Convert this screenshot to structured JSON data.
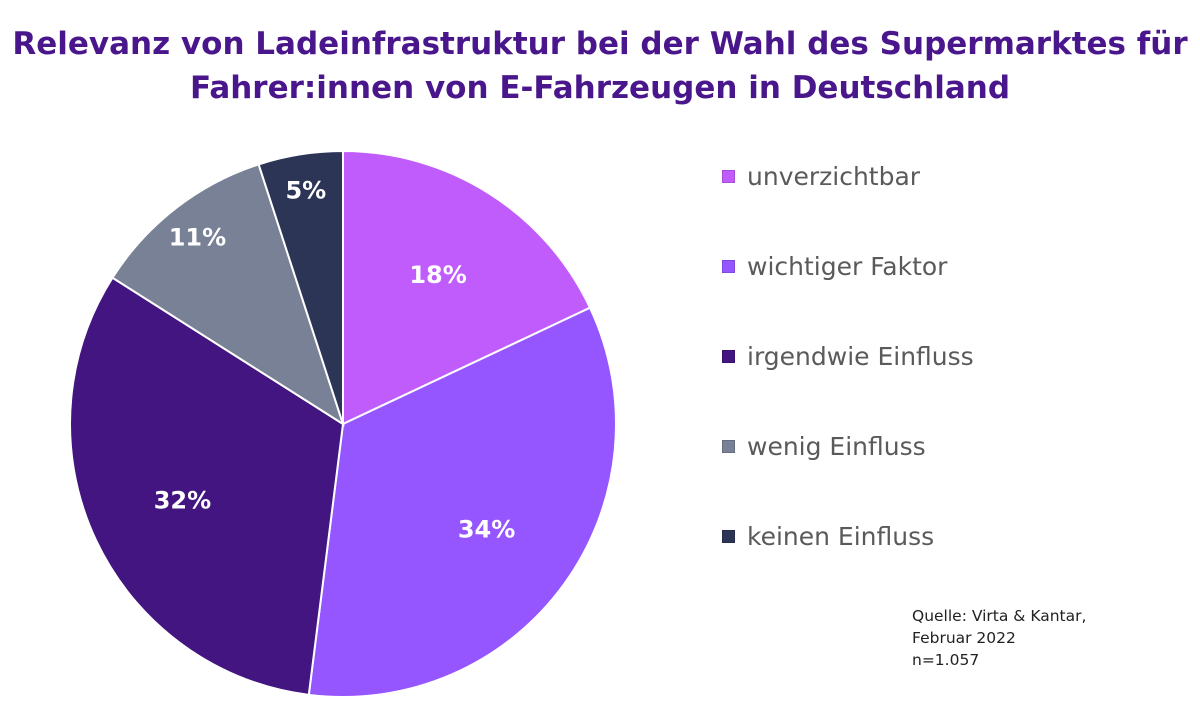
{
  "chart_data": {
    "type": "pie",
    "title": "Relevanz von Ladeinfrastruktur bei der Wahl des Supermarktes für Fahrer:innen von E-Fahrzeugen in Deutschland",
    "title_lines": [
      "Relevanz von Ladeinfrastruktur bei der Wahl des Supermarktes für",
      "Fahrer:innen von E-Fahrzeugen in Deutschland"
    ],
    "legend_position": "right",
    "slices": [
      {
        "label": "unverzichtbar",
        "value": 18,
        "display": "18%",
        "color": "#c15cfc"
      },
      {
        "label": "wichtiger Faktor",
        "value": 34,
        "display": "34%",
        "color": "#9656ff"
      },
      {
        "label": "irgendwie Einfluss",
        "value": 32,
        "display": "32%",
        "color": "#431580"
      },
      {
        "label": "wenig Einfluss",
        "value": 11,
        "display": "11%",
        "color": "#788195"
      },
      {
        "label": "keinen Einfluss",
        "value": 5,
        "display": "5%",
        "color": "#2c3556"
      }
    ],
    "source_lines": [
      "Quelle: Virta & Kantar,",
      "Februar 2022",
      "n=1.057"
    ]
  }
}
